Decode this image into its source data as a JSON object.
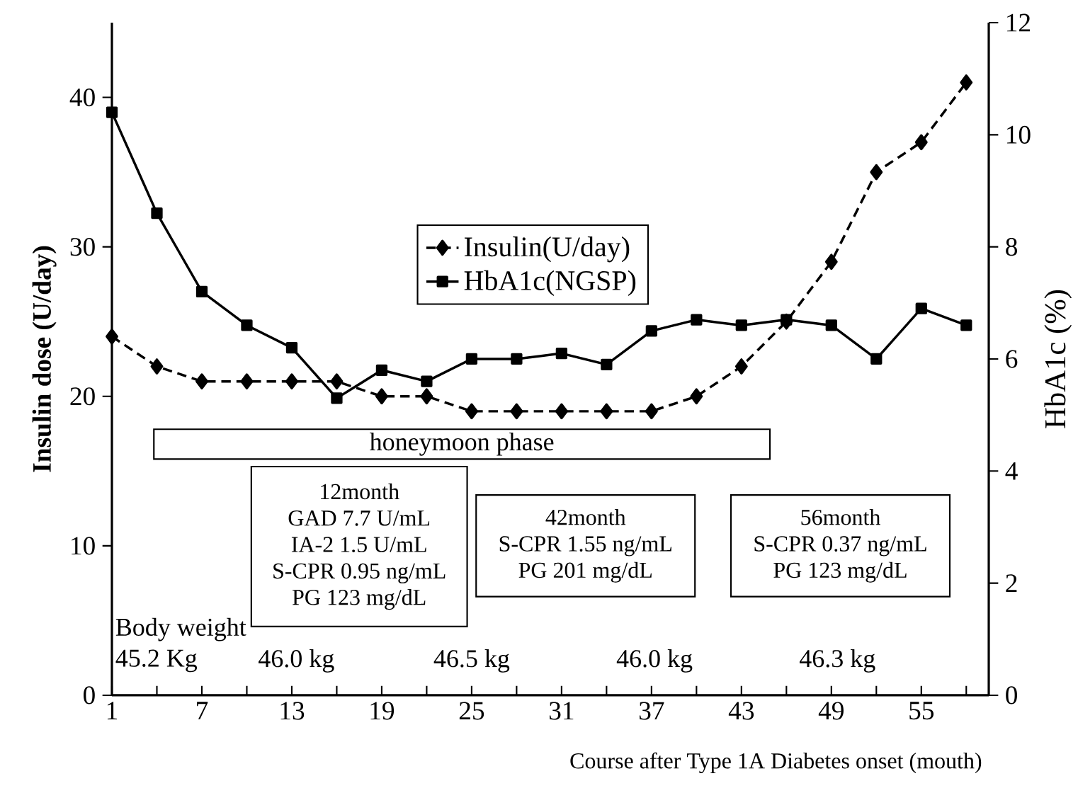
{
  "chart_data": {
    "type": "line",
    "xlabel": "Course after Type 1A Diabetes onset (mouth)",
    "ylabel": "Insulin dose (U/day)",
    "y2label": "HbA1c (%)",
    "x": [
      1,
      4,
      7,
      10,
      13,
      16,
      19,
      22,
      25,
      28,
      31,
      34,
      37,
      40,
      43,
      46,
      49,
      52,
      55,
      58
    ],
    "series": [
      {
        "name": "Insulin(U/day)",
        "color": "#000000",
        "marker": "diamond",
        "line_style": "dashed",
        "values": [
          24,
          22,
          21,
          21,
          21,
          21,
          20,
          20,
          19,
          19,
          19,
          19,
          19,
          20,
          22,
          25,
          29,
          35,
          37,
          41
        ]
      },
      {
        "name": "HbA1c(NGSP)",
        "color": "#000000",
        "marker": "square",
        "line_style": "solid",
        "axis": "y2",
        "values": [
          10.4,
          8.6,
          7.2,
          6.6,
          6.2,
          5.3,
          5.8,
          5.6,
          6.0,
          6.0,
          6.1,
          5.9,
          6.5,
          6.7,
          6.6,
          6.7,
          6.6,
          6.0,
          6.9,
          6.6
        ]
      }
    ],
    "xlim": [
      1,
      59.5
    ],
    "xticks": [
      1,
      {
        "value": 4,
        "label": null
      },
      7,
      {
        "value": 10,
        "label": null
      },
      13,
      {
        "value": 16,
        "label": null
      },
      19,
      {
        "value": 22,
        "label": null
      },
      25,
      {
        "value": 28,
        "label": null
      },
      31,
      {
        "value": 34,
        "label": null
      },
      37,
      {
        "value": 40,
        "label": null
      },
      43,
      {
        "value": 46,
        "label": null
      },
      49,
      {
        "value": 52,
        "label": null
      },
      55,
      {
        "value": 58,
        "label": null
      }
    ],
    "ylim": [
      0,
      45
    ],
    "yticks": [
      0,
      10,
      20,
      30,
      40
    ],
    "y2lim": [
      0,
      12
    ],
    "y2ticks": [
      0,
      2,
      4,
      6,
      8,
      10,
      12
    ],
    "legend": "top",
    "annotations": [
      "honeymoon phase",
      "12month",
      "GAD 7.7 U/mL",
      "IA-2 1.5 U/mL",
      "S-CPR 0.95 ng/mL",
      "PG 123 mg/dL",
      "42month",
      "S-CPR 1.55 ng/mL",
      "PG 201 mg/dL",
      "56month",
      "S-CPR 0.37 ng/mL",
      "PG 123 mg/dL",
      "Body weight",
      "45.2 Kg",
      "46.0 kg",
      "46.5 kg",
      "46.0 kg",
      "46.3 kg"
    ]
  }
}
